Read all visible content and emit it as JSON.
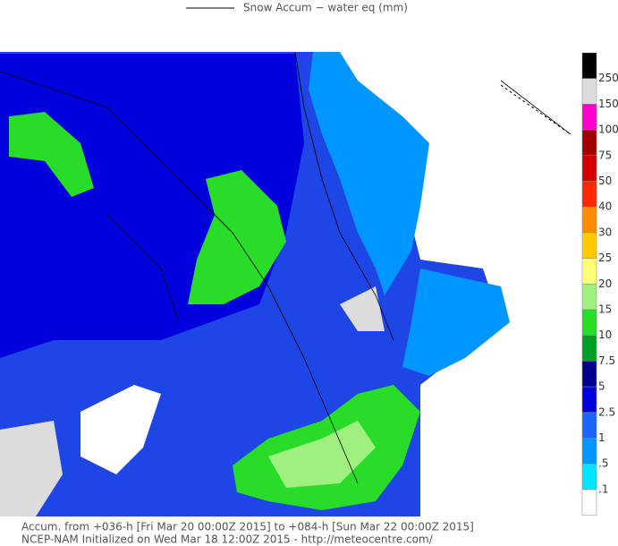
{
  "header": {
    "title": "Snow Accum − water eq (mm)"
  },
  "colorbar": {
    "labels": [
      "250",
      "150",
      "100",
      "75",
      "50",
      "40",
      "30",
      "25",
      "20",
      "15",
      "10",
      "7.5",
      "5",
      "2.5",
      "1",
      ".5",
      ".1"
    ],
    "colors": [
      "#000000",
      "#dcdcdc",
      "#ff00c8",
      "#a00000",
      "#d20000",
      "#ff2800",
      "#ff8c00",
      "#ffc800",
      "#ffff78",
      "#a0f080",
      "#28dc28",
      "#00a028",
      "#00008c",
      "#0000dc",
      "#1e64ff",
      "#0096ff",
      "#00e6ff",
      "#ffffff"
    ]
  },
  "footer": {
    "line1": "Accum. from +036-h [Fri Mar 20 00:00Z 2015] to +084-h [Sun Mar 22 00:00Z 2015]",
    "line2": "NCEP-NAM Initialized on Wed Mar 18 12:00Z 2015 - http://meteocentre.com/"
  }
}
